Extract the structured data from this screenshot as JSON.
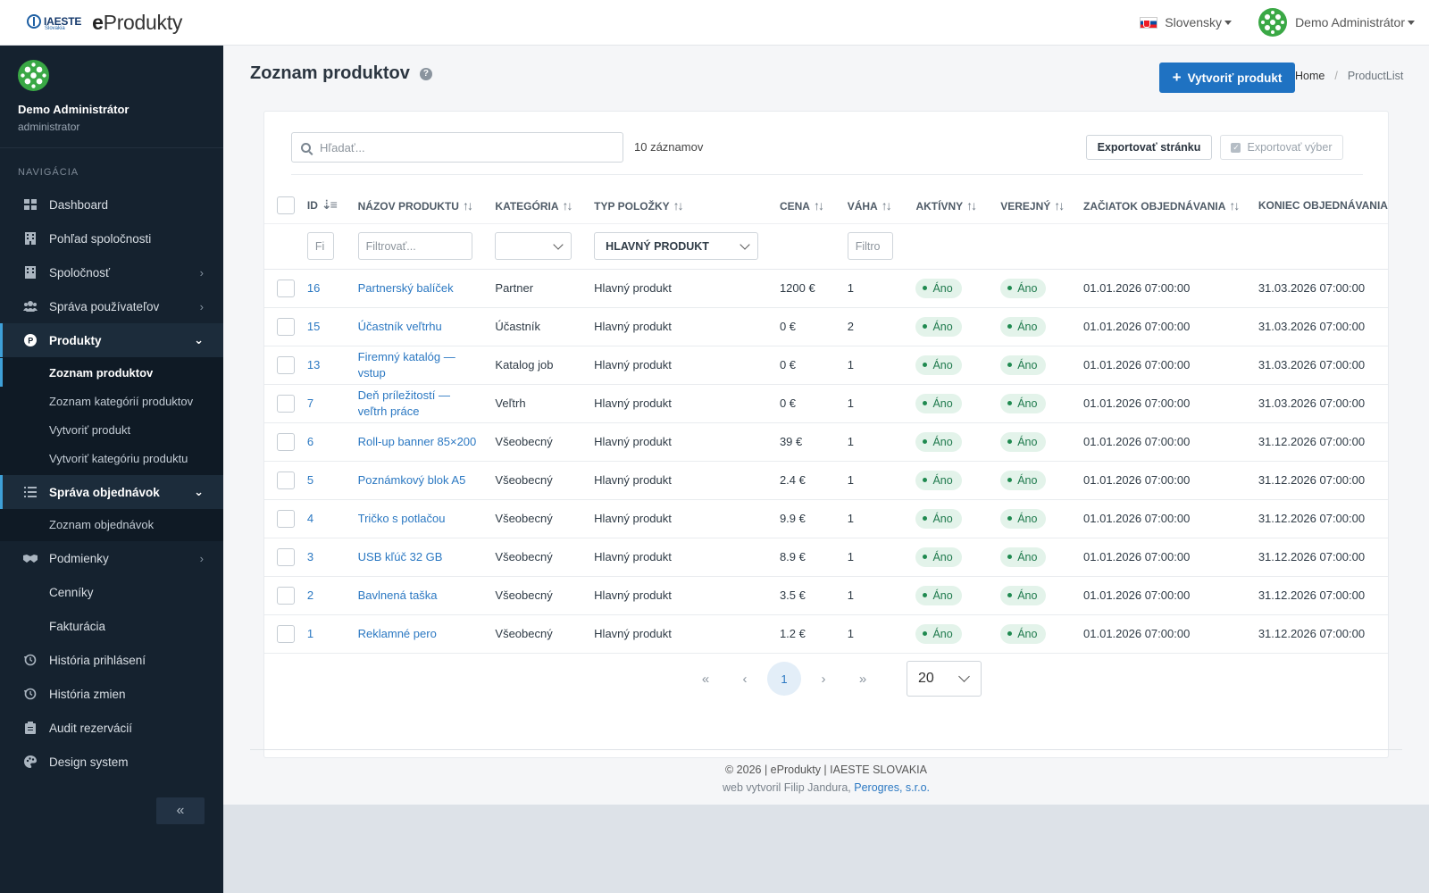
{
  "topbar": {
    "org_logo": "IAESTE",
    "org_sub": "Slovakia",
    "app_name_first": "e",
    "app_name_rest": "Produkty",
    "language": "Slovensky",
    "user": "Demo Administrátor"
  },
  "sidebar": {
    "profile_name": "Demo Administrátor",
    "profile_role": "administrator",
    "nav_header": "NAVIGÁCIA",
    "items": [
      {
        "label": "Dashboard",
        "icon": "dashboard-icon"
      },
      {
        "label": "Pohľad spoločnosti",
        "icon": "building-icon"
      },
      {
        "label": "Spoločnosť",
        "icon": "company-icon"
      },
      {
        "label": "Správa používateľov",
        "icon": "users-icon"
      },
      {
        "label": "Produkty",
        "icon": "product-icon"
      },
      {
        "label": "Správa objednávok",
        "icon": "list-icon"
      },
      {
        "label": "Podmienky",
        "icon": "handshake-icon"
      },
      {
        "label": "História prihlásení",
        "icon": "history-icon"
      },
      {
        "label": "História zmien",
        "icon": "history-icon"
      },
      {
        "label": "Audit rezervácií",
        "icon": "clipboard-icon"
      },
      {
        "label": "Design system",
        "icon": "palette-icon"
      }
    ],
    "products_sub": [
      "Zoznam produktov",
      "Zoznam kategórií produktov",
      "Vytvoriť produkt",
      "Vytvoriť kategóriu produktu"
    ],
    "orders_sub": [
      "Zoznam objednávok"
    ],
    "conditions_sub": [
      "Cenníky",
      "Fakturácia"
    ],
    "collapse_label": "«"
  },
  "page": {
    "title": "Zoznam produktov",
    "create_button": "Vytvoriť produkt",
    "breadcrumb_home": "Home",
    "breadcrumb_sep": "/",
    "breadcrumb_current": "ProductList"
  },
  "toolbar": {
    "search_placeholder": "Hľadať...",
    "record_count": "10 záznamov",
    "export_page": "Exportovať stránku",
    "export_selection": "Exportovať výber"
  },
  "table": {
    "columns": [
      "ID",
      "NÁZOV PRODUKTU",
      "KATEGÓRIA",
      "TYP POLOŽKY",
      "CENA",
      "VÁHA",
      "AKTÍVNY",
      "VEREJNÝ",
      "ZAČIATOK OBJEDNÁVANIA",
      "KONIEC OBJEDNÁVANIA"
    ],
    "filters": {
      "id_placeholder": "Fi",
      "name_placeholder": "Filtrovať...",
      "category_value": "",
      "type_value": "HLAVNÝ PRODUKT",
      "weight_placeholder": "Filtro"
    },
    "rows": [
      {
        "id": "16",
        "name": "Partnerský balíček",
        "category": "Partner",
        "type": "Hlavný produkt",
        "price": "1200 €",
        "weight": "1",
        "active": "Áno",
        "public": "Áno",
        "start": "01.01.2026 07:00:00",
        "end": "31.03.2026 07:00:00"
      },
      {
        "id": "15",
        "name": "Účastník veľtrhu",
        "category": "Účastník",
        "type": "Hlavný produkt",
        "price": "0 €",
        "weight": "2",
        "active": "Áno",
        "public": "Áno",
        "start": "01.01.2026 07:00:00",
        "end": "31.03.2026 07:00:00"
      },
      {
        "id": "13",
        "name": "Firemný katalóg — vstup",
        "category": "Katalog job",
        "type": "Hlavný produkt",
        "price": "0 €",
        "weight": "1",
        "active": "Áno",
        "public": "Áno",
        "start": "01.01.2026 07:00:00",
        "end": "31.03.2026 07:00:00"
      },
      {
        "id": "7",
        "name": "Deň príležitostí — veľtrh práce",
        "category": "Veľtrh",
        "type": "Hlavný produkt",
        "price": "0 €",
        "weight": "1",
        "active": "Áno",
        "public": "Áno",
        "start": "01.01.2026 07:00:00",
        "end": "31.03.2026 07:00:00"
      },
      {
        "id": "6",
        "name": "Roll-up banner 85×200",
        "category": "Všeobecný",
        "type": "Hlavný produkt",
        "price": "39 €",
        "weight": "1",
        "active": "Áno",
        "public": "Áno",
        "start": "01.01.2026 07:00:00",
        "end": "31.12.2026 07:00:00"
      },
      {
        "id": "5",
        "name": "Poznámkový blok A5",
        "category": "Všeobecný",
        "type": "Hlavný produkt",
        "price": "2.4 €",
        "weight": "1",
        "active": "Áno",
        "public": "Áno",
        "start": "01.01.2026 07:00:00",
        "end": "31.12.2026 07:00:00"
      },
      {
        "id": "4",
        "name": "Tričko s potlačou",
        "category": "Všeobecný",
        "type": "Hlavný produkt",
        "price": "9.9 €",
        "weight": "1",
        "active": "Áno",
        "public": "Áno",
        "start": "01.01.2026 07:00:00",
        "end": "31.12.2026 07:00:00"
      },
      {
        "id": "3",
        "name": "USB kľúč 32 GB",
        "category": "Všeobecný",
        "type": "Hlavný produkt",
        "price": "8.9 €",
        "weight": "1",
        "active": "Áno",
        "public": "Áno",
        "start": "01.01.2026 07:00:00",
        "end": "31.12.2026 07:00:00"
      },
      {
        "id": "2",
        "name": "Bavlnená taška",
        "category": "Všeobecný",
        "type": "Hlavný produkt",
        "price": "3.5 €",
        "weight": "1",
        "active": "Áno",
        "public": "Áno",
        "start": "01.01.2026 07:00:00",
        "end": "31.12.2026 07:00:00"
      },
      {
        "id": "1",
        "name": "Reklamné pero",
        "category": "Všeobecný",
        "type": "Hlavný produkt",
        "price": "1.2 €",
        "weight": "1",
        "active": "Áno",
        "public": "Áno",
        "start": "01.01.2026 07:00:00",
        "end": "31.12.2026 07:00:00"
      }
    ]
  },
  "pagination": {
    "current_page": "1",
    "page_size": "20"
  },
  "footer": {
    "line1": "© 2026 | eProdukty | IAESTE SLOVAKIA",
    "line2_prefix": "web vytvoril Filip Jandura,",
    "line2_link": "Perogres, s.r.o."
  },
  "colors": {
    "primary": "#1f72c2",
    "sidebar_bg": "#15222f",
    "badge_bg": "#e3f3ea",
    "badge_text": "#1f7a4d",
    "link": "#2b78c2"
  }
}
